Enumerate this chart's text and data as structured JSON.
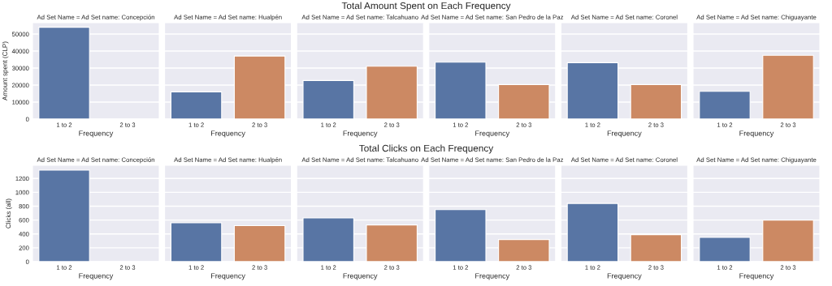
{
  "chart_data": [
    {
      "type": "bar",
      "title": "Ad Set Name = Ad Set name: Concepción",
      "annotations": [
        "Total Amount Spent on Each Frequency"
      ],
      "xlabel": "Frequency",
      "ylabel": "Amount spent (CLP)",
      "categories": [
        "1 to 2",
        "2 to 3"
      ],
      "values": [
        54000,
        null
      ],
      "colors": [
        "#5875a4",
        "#cc8963"
      ],
      "ylim": [
        0,
        56700
      ],
      "yticks": [
        0,
        10000,
        20000,
        30000,
        40000,
        50000
      ],
      "grid": "y"
    },
    {
      "type": "bar",
      "title": "Ad Set Name = Ad Set name: Hualpén",
      "xlabel": "Frequency",
      "categories": [
        "1 to 2",
        "2 to 3"
      ],
      "values": [
        16000,
        37100
      ],
      "colors": [
        "#5875a4",
        "#cc8963"
      ],
      "ylim": [
        0,
        56700
      ],
      "tick_labels": "x",
      "grid": "y"
    },
    {
      "type": "bar",
      "title": "Ad Set Name = Ad Set name: Talcahuano",
      "xlabel": "Frequency",
      "categories": [
        "1 to 2",
        "2 to 3"
      ],
      "values": [
        22700,
        31100
      ],
      "colors": [
        "#5875a4",
        "#cc8963"
      ],
      "ylim": [
        0,
        56700
      ],
      "tick_labels": "x",
      "grid": "y"
    },
    {
      "type": "bar",
      "title": "Ad Set Name = Ad Set name: San Pedro de la Paz",
      "xlabel": "Frequency",
      "categories": [
        "1 to 2",
        "2 to 3"
      ],
      "values": [
        33500,
        20300
      ],
      "colors": [
        "#5875a4",
        "#cc8963"
      ],
      "ylim": [
        0,
        56700
      ],
      "tick_labels": "x",
      "grid": "y"
    },
    {
      "type": "bar",
      "title": "Ad Set Name = Ad Set name: Coronel",
      "xlabel": "Frequency",
      "categories": [
        "1 to 2",
        "2 to 3"
      ],
      "values": [
        33200,
        20300
      ],
      "colors": [
        "#5875a4",
        "#cc8963"
      ],
      "ylim": [
        0,
        56700
      ],
      "tick_labels": "x",
      "grid": "y"
    },
    {
      "type": "bar",
      "title": "Ad Set Name = Ad Set name: Chiguayante",
      "xlabel": "Frequency",
      "categories": [
        "1 to 2",
        "2 to 3"
      ],
      "values": [
        16300,
        37500
      ],
      "colors": [
        "#5875a4",
        "#cc8963"
      ],
      "ylim": [
        0,
        56700
      ],
      "tick_labels": "x",
      "grid": "y"
    },
    {
      "type": "bar",
      "title": "Ad Set Name = Ad Set name: Concepción",
      "annotations": [
        "Total Clicks on Each Frequency"
      ],
      "xlabel": "Frequency",
      "ylabel": "Clicks (all)",
      "categories": [
        "1 to 2",
        "2 to 3"
      ],
      "values": [
        1320,
        null
      ],
      "colors": [
        "#5875a4",
        "#cc8963"
      ],
      "ylim": [
        0,
        1390
      ],
      "yticks": [
        0,
        200,
        400,
        600,
        800,
        1000,
        1200
      ],
      "grid": "y"
    },
    {
      "type": "bar",
      "title": "Ad Set Name = Ad Set name: Hualpén",
      "xlabel": "Frequency",
      "categories": [
        "1 to 2",
        "2 to 3"
      ],
      "values": [
        560,
        520
      ],
      "colors": [
        "#5875a4",
        "#cc8963"
      ],
      "ylim": [
        0,
        1390
      ],
      "tick_labels": "x",
      "grid": "y"
    },
    {
      "type": "bar",
      "title": "Ad Set Name = Ad Set name: Talcahuano",
      "xlabel": "Frequency",
      "categories": [
        "1 to 2",
        "2 to 3"
      ],
      "values": [
        630,
        530
      ],
      "colors": [
        "#5875a4",
        "#cc8963"
      ],
      "ylim": [
        0,
        1390
      ],
      "tick_labels": "x",
      "grid": "y"
    },
    {
      "type": "bar",
      "title": "Ad Set Name = Ad Set name: San Pedro de la Paz",
      "xlabel": "Frequency",
      "categories": [
        "1 to 2",
        "2 to 3"
      ],
      "values": [
        750,
        320
      ],
      "colors": [
        "#5875a4",
        "#cc8963"
      ],
      "ylim": [
        0,
        1390
      ],
      "tick_labels": "x",
      "grid": "y"
    },
    {
      "type": "bar",
      "title": "Ad Set Name = Ad Set name: Coronel",
      "xlabel": "Frequency",
      "categories": [
        "1 to 2",
        "2 to 3"
      ],
      "values": [
        840,
        390
      ],
      "colors": [
        "#5875a4",
        "#cc8963"
      ],
      "ylim": [
        0,
        1390
      ],
      "tick_labels": "x",
      "grid": "y"
    },
    {
      "type": "bar",
      "title": "Ad Set Name = Ad Set name: Chiguayante",
      "xlabel": "Frequency",
      "categories": [
        "1 to 2",
        "2 to 3"
      ],
      "values": [
        350,
        600
      ],
      "colors": [
        "#5875a4",
        "#cc8963"
      ],
      "ylim": [
        0,
        1390
      ],
      "tick_labels": "x",
      "grid": "y"
    }
  ]
}
